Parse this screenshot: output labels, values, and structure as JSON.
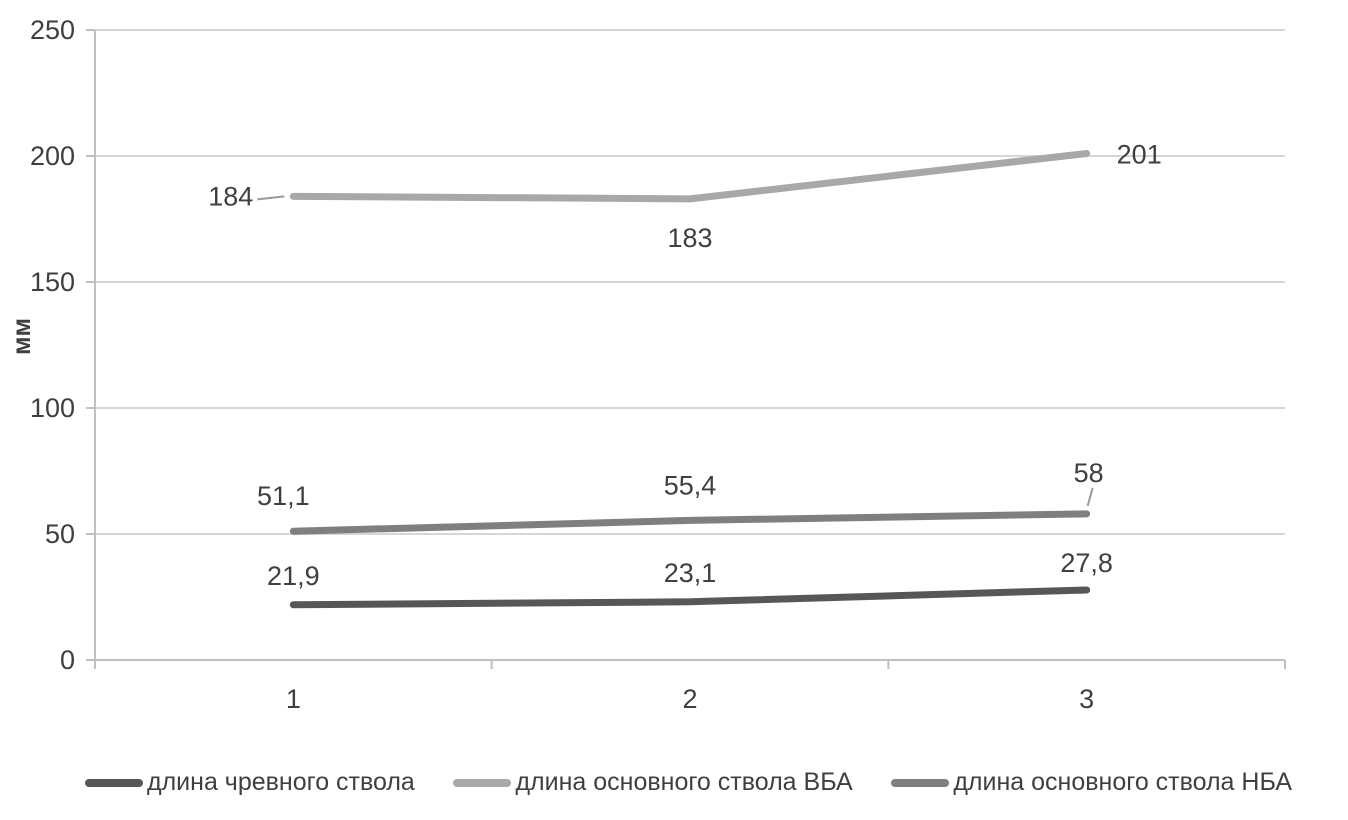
{
  "chart_data": {
    "type": "line",
    "categories": [
      "1",
      "2",
      "3"
    ],
    "series": [
      {
        "name": "длина чревного ствола",
        "values": [
          21.9,
          23.1,
          27.8
        ],
        "labels": [
          "21,9",
          "23,1",
          "27,8"
        ],
        "color": "#575757"
      },
      {
        "name": "длина основного ствола ВБА",
        "values": [
          184,
          183,
          201
        ],
        "labels": [
          "184",
          "183",
          "201"
        ],
        "color": "#a8a8a8"
      },
      {
        "name": "длина основного ствола НБА",
        "values": [
          51.1,
          55.4,
          58
        ],
        "labels": [
          "51,1",
          "55,4",
          "58"
        ],
        "color": "#7f7f7f"
      }
    ],
    "title": "",
    "xlabel": "",
    "ylabel": "мм",
    "ylim": [
      0,
      250
    ],
    "yticks": [
      0,
      50,
      100,
      150,
      200,
      250
    ],
    "grid": true,
    "legend_position": "bottom"
  },
  "colors": {
    "grid": "#d6d6d6",
    "axis": "#c0c0c0",
    "text": "#3f3f3f",
    "leader": "#9a9a9a",
    "background": "#ffffff"
  }
}
